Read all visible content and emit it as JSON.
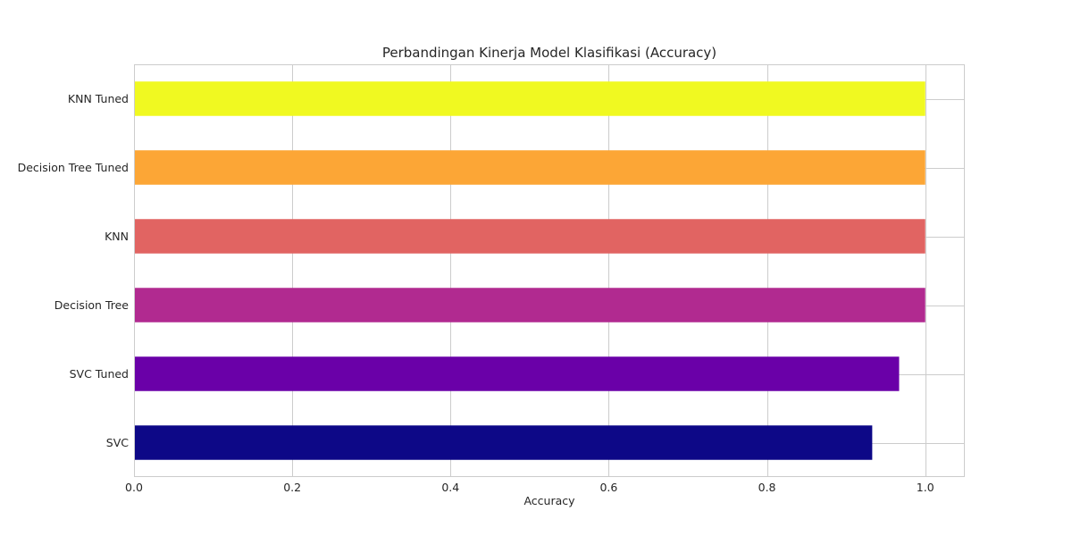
{
  "chart_data": {
    "type": "bar",
    "orientation": "horizontal",
    "title": "Perbandingan Kinerja Model Klasifikasi (Accuracy)",
    "xlabel": "Accuracy",
    "ylabel": "",
    "xlim": [
      0,
      1.05
    ],
    "xticks": [
      0.0,
      0.2,
      0.4,
      0.6,
      0.8,
      1.0
    ],
    "xtick_labels": [
      "0.0",
      "0.2",
      "0.4",
      "0.6",
      "0.8",
      "1.0"
    ],
    "grid": true,
    "categories": [
      "SVC",
      "SVC Tuned",
      "Decision Tree",
      "KNN",
      "Decision Tree Tuned",
      "KNN Tuned"
    ],
    "values": [
      0.933,
      0.967,
      1.0,
      1.0,
      1.0,
      1.0
    ],
    "colors": [
      "#0d0887",
      "#6a00a8",
      "#b12a90",
      "#e16462",
      "#fca636",
      "#f0f921"
    ]
  }
}
